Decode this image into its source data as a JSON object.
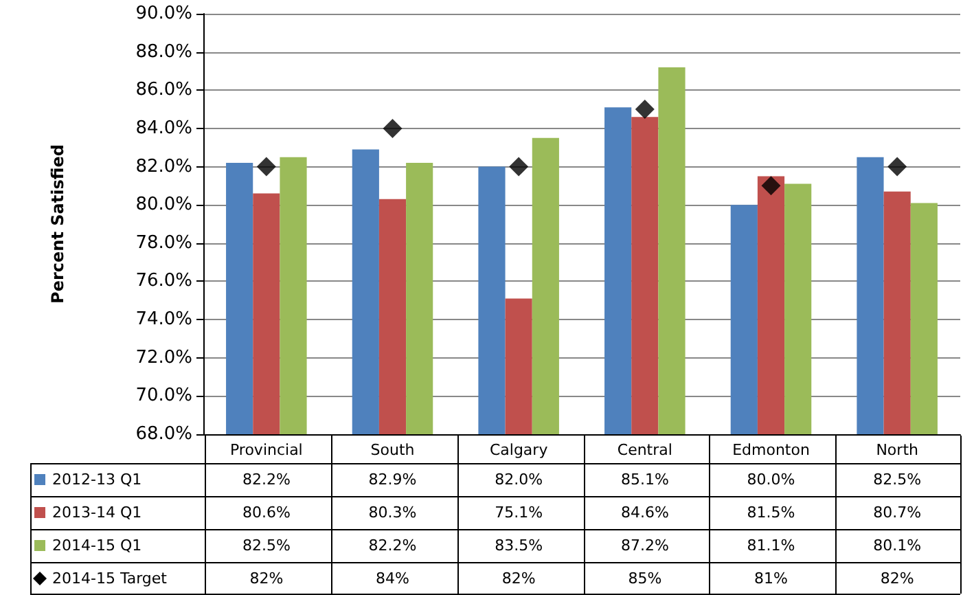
{
  "chart_data": {
    "type": "bar",
    "ylabel": "Percent Satisfied",
    "categories": [
      "Provincial",
      "South",
      "Calgary",
      "Central",
      "Edmonton",
      "North"
    ],
    "series": [
      {
        "name": "2012-13 Q1",
        "color": "#4f81bd",
        "values": [
          82.2,
          82.9,
          82.0,
          85.1,
          80.0,
          82.5
        ],
        "value_labels": [
          "82.2%",
          "82.9%",
          "82.0%",
          "85.1%",
          "80.0%",
          "82.5%"
        ]
      },
      {
        "name": "2013-14 Q1",
        "color": "#c0504d",
        "values": [
          80.6,
          80.3,
          75.1,
          84.6,
          81.5,
          80.7
        ],
        "value_labels": [
          "80.6%",
          "80.3%",
          "75.1%",
          "84.6%",
          "81.5%",
          "80.7%"
        ]
      },
      {
        "name": "2014-15 Q1",
        "color": "#9bbb59",
        "values": [
          82.5,
          82.2,
          83.5,
          87.2,
          81.1,
          80.1
        ],
        "value_labels": [
          "82.5%",
          "82.2%",
          "83.5%",
          "87.2%",
          "81.1%",
          "80.1%"
        ]
      },
      {
        "name": "2014-15 Target",
        "type": "scatter",
        "marker": "diamond",
        "color": "#000000",
        "x": [
          "Provincial",
          "South",
          "Calgary",
          "Central",
          "Edmonton",
          "North"
        ],
        "values": [
          82,
          84,
          82,
          85,
          81,
          82
        ],
        "value_labels": [
          "82%",
          "84%",
          "82%",
          "85%",
          "81%",
          "82%"
        ]
      }
    ],
    "ylim": [
      68,
      90
    ],
    "yticks": [
      {
        "value": 68,
        "label": "68.0%"
      },
      {
        "value": 70,
        "label": "70.0%"
      },
      {
        "value": 72,
        "label": "72.0%"
      },
      {
        "value": 74,
        "label": "74.0%"
      },
      {
        "value": 76,
        "label": "76.0%"
      },
      {
        "value": 78,
        "label": "78.0%"
      },
      {
        "value": 80,
        "label": "80.0%"
      },
      {
        "value": 82,
        "label": "82.0%"
      },
      {
        "value": 84,
        "label": "84.0%"
      },
      {
        "value": 86,
        "label": "86.0%"
      },
      {
        "value": 88,
        "label": "88.0%"
      },
      {
        "value": 90,
        "label": "90.0%"
      }
    ],
    "grid": "y",
    "legend": "bottom"
  }
}
